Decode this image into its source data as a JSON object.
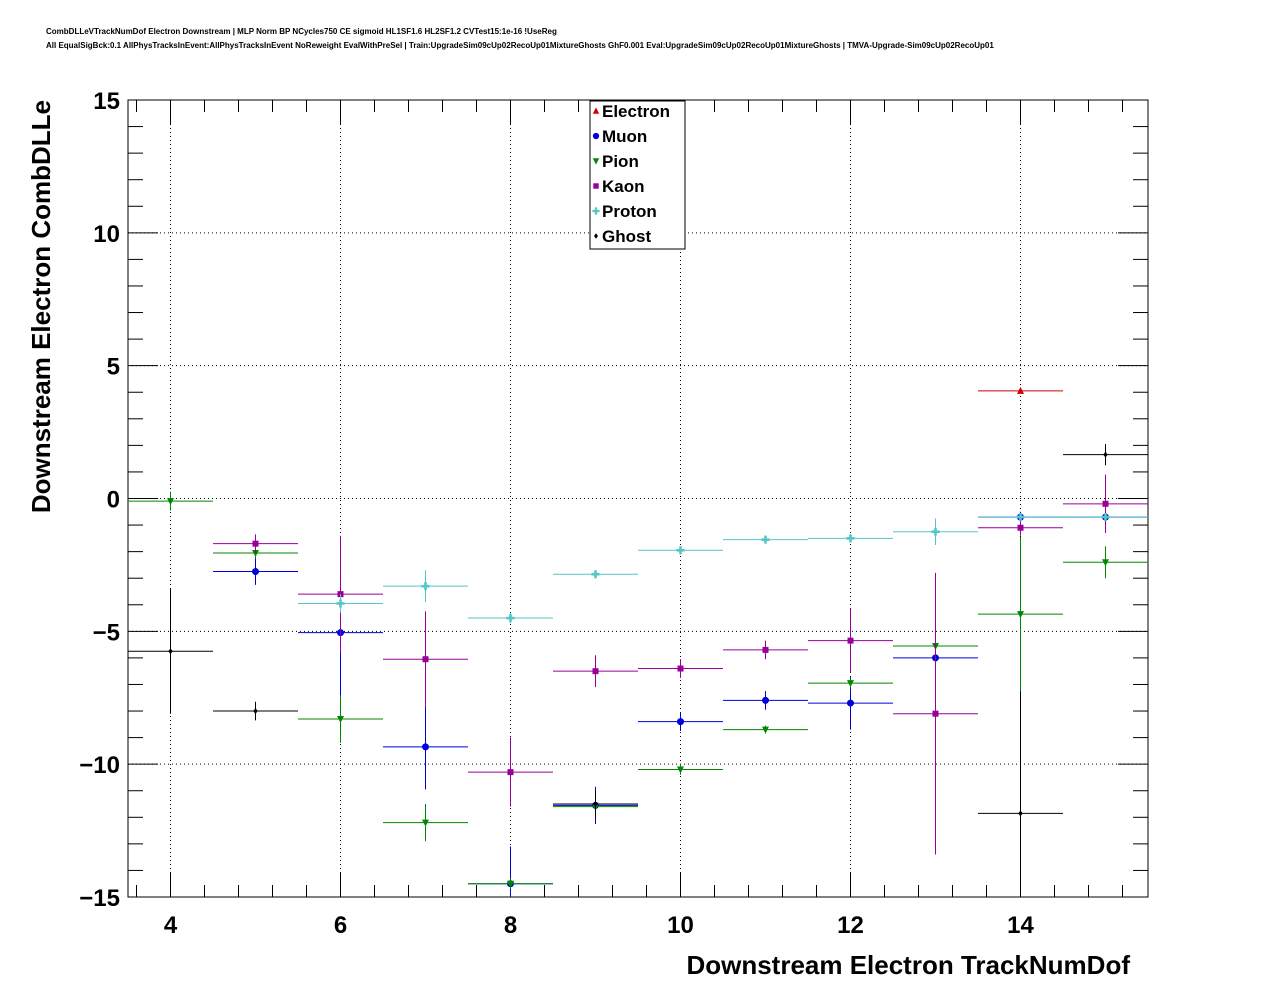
{
  "chart_data": {
    "type": "scatter",
    "title": "CombDLLeVTrackNumDof Electron Downstream | MLP Norm BP NCycles750 CE sigmoid HL1SF1.6 HL2SF1.2 CVTest15:1e-16 !UseReg",
    "subtitle": "All EqualSigBck:0.1 AllPhysTracksInEvent:AllPhysTracksInEvent NoReweight EvalWithPreSel | Train:UpgradeSim09cUp02RecoUp01MixtureGhosts GhF0.001 Eval:UpgradeSim09cUp02RecoUp01MixtureGhosts | TMVA-Upgrade-Sim09cUp02RecoUp01",
    "xlabel": "Downstream Electron TrackNumDof",
    "ylabel": "Downstream Electron CombDLLe",
    "xlim": [
      3.5,
      15.5
    ],
    "ylim": [
      -15,
      15
    ],
    "xticks": [
      4,
      6,
      8,
      10,
      12,
      14
    ],
    "xtick_labels": [
      "4",
      "6",
      "8",
      "10",
      "12",
      "14"
    ],
    "yticks": [
      -15,
      -10,
      -5,
      0,
      5,
      10,
      15
    ],
    "ytick_labels": [
      "−15",
      "−10",
      "−5",
      "0",
      "5",
      "10",
      "15"
    ],
    "grid": true,
    "legend_position": "top-center",
    "series": [
      {
        "name": "Electron",
        "color": "#cc0000",
        "marker": "triangle-up",
        "points": [
          {
            "x": 14,
            "y": 4.05,
            "yerr": 0.05
          }
        ]
      },
      {
        "name": "Muon",
        "color": "#0000dd",
        "marker": "circle",
        "points": [
          {
            "x": 5,
            "y": -2.75,
            "yerr": 0.5
          },
          {
            "x": 6,
            "y": -5.05,
            "yerr": 2.6
          },
          {
            "x": 7,
            "y": -9.35,
            "yerr": 1.6
          },
          {
            "x": 8,
            "y": -14.5,
            "yerr": 1.4
          },
          {
            "x": 9,
            "y": -11.55,
            "yerr": 0.7
          },
          {
            "x": 10,
            "y": -8.4,
            "yerr": 0.35
          },
          {
            "x": 11,
            "y": -7.6,
            "yerr": 0.35
          },
          {
            "x": 12,
            "y": -7.7,
            "yerr": 1.0
          },
          {
            "x": 13,
            "y": -6.0,
            "yerr": 1.4
          },
          {
            "x": 14,
            "y": -0.7,
            "yerr": 0.2
          },
          {
            "x": 15,
            "y": -0.7,
            "yerr": 0.2
          }
        ]
      },
      {
        "name": "Pion",
        "color": "#008800",
        "marker": "triangle-down",
        "points": [
          {
            "x": 4,
            "y": -0.1,
            "yerr": 0.35
          },
          {
            "x": 5,
            "y": -2.05,
            "yerr": 0.2
          },
          {
            "x": 6,
            "y": -8.3,
            "yerr": 0.9
          },
          {
            "x": 7,
            "y": -12.2,
            "yerr": 0.7
          },
          {
            "x": 8,
            "y": -14.5,
            "yerr": 0.2
          },
          {
            "x": 9,
            "y": -11.6,
            "yerr": 0.2
          },
          {
            "x": 10,
            "y": -10.2,
            "yerr": 0.2
          },
          {
            "x": 11,
            "y": -8.7,
            "yerr": 0.15
          },
          {
            "x": 12,
            "y": -6.95,
            "yerr": 0.2
          },
          {
            "x": 13,
            "y": -5.55,
            "yerr": 0.3
          },
          {
            "x": 14,
            "y": -4.35,
            "yerr": 2.9
          },
          {
            "x": 15,
            "y": -2.4,
            "yerr": 0.6
          }
        ]
      },
      {
        "name": "Kaon",
        "color": "#990099",
        "marker": "square",
        "points": [
          {
            "x": 5,
            "y": -1.7,
            "yerr": 0.35
          },
          {
            "x": 6,
            "y": -3.6,
            "yerr": 2.2
          },
          {
            "x": 7,
            "y": -6.05,
            "yerr": 1.8
          },
          {
            "x": 8,
            "y": -10.3,
            "yerr": 1.3
          },
          {
            "x": 9,
            "y": -6.5,
            "yerr": 0.6
          },
          {
            "x": 10,
            "y": -6.4,
            "yerr": 0.35
          },
          {
            "x": 11,
            "y": -5.7,
            "yerr": 0.35
          },
          {
            "x": 12,
            "y": -5.35,
            "yerr": 1.2
          },
          {
            "x": 13,
            "y": -8.1,
            "yerr": 5.3
          },
          {
            "x": 14,
            "y": -1.1,
            "yerr": 0.3
          },
          {
            "x": 15,
            "y": -0.2,
            "yerr": 1.1
          }
        ]
      },
      {
        "name": "Proton",
        "color": "#55c6c6",
        "marker": "cross",
        "points": [
          {
            "x": 6,
            "y": -3.95,
            "yerr": 0.35
          },
          {
            "x": 7,
            "y": -3.3,
            "yerr": 0.6
          },
          {
            "x": 8,
            "y": -4.5,
            "yerr": 0.2
          },
          {
            "x": 9,
            "y": -2.85,
            "yerr": 0.15
          },
          {
            "x": 10,
            "y": -1.95,
            "yerr": 0.15
          },
          {
            "x": 11,
            "y": -1.55,
            "yerr": 0.15
          },
          {
            "x": 12,
            "y": -1.5,
            "yerr": 0.15
          },
          {
            "x": 13,
            "y": -1.25,
            "yerr": 0.5
          },
          {
            "x": 14,
            "y": -0.7,
            "yerr": 0.15
          },
          {
            "x": 15,
            "y": -0.7,
            "yerr": 0.15
          }
        ]
      },
      {
        "name": "Ghost",
        "color": "#000000",
        "marker": "diamond",
        "points": [
          {
            "x": 4,
            "y": -5.75,
            "yerr": 2.35
          },
          {
            "x": 5,
            "y": -8.0,
            "yerr": 0.35
          },
          {
            "x": 9,
            "y": -11.5,
            "yerr": 0.5
          },
          {
            "x": 14,
            "y": -11.85,
            "yerr": 4.6
          },
          {
            "x": 15,
            "y": 1.65,
            "yerr": 0.4
          }
        ]
      }
    ]
  }
}
